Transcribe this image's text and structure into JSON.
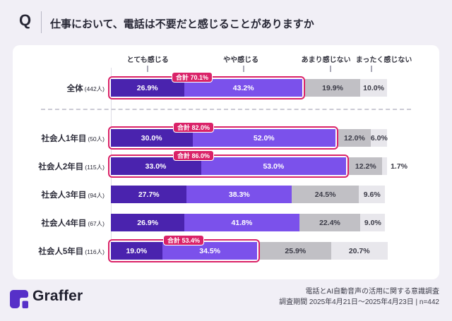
{
  "header": {
    "q_mark": "Q",
    "title": "仕事において、電話は不要だと感じることがありますか"
  },
  "chart_data": {
    "type": "bar",
    "orientation": "horizontal-stacked",
    "unit": "%",
    "title": "仕事において、電話は不要だと感じることがありますか",
    "xlim": [
      0,
      100
    ],
    "grid": false,
    "legend_position": "top",
    "legend": [
      "とても感じる",
      "やや感じる",
      "あまり感じない",
      "まったく感じない"
    ],
    "colors": {
      "segments": [
        "#4A23AE",
        "#7B51EB",
        "#C1C0C5",
        "#E8E7EC"
      ],
      "segment_text": [
        "#FFFFFF",
        "#FFFFFF",
        "#3B3B47",
        "#3B3B47"
      ],
      "highlight_pink": "#DA2268",
      "background": "#F1EFF6",
      "card": "#FFFFFF"
    },
    "rows": [
      {
        "label": "全体",
        "count": "(442人)",
        "values": [
          26.9,
          43.2,
          19.9,
          10.0
        ],
        "total_label": "合計 70.1%",
        "separator_after": true
      },
      {
        "label": "社会人1年目",
        "count": "(50人)",
        "values": [
          30.0,
          52.0,
          12.0,
          6.0
        ],
        "total_label": "合計 82.0%"
      },
      {
        "label": "社会人2年目",
        "count": "(115人)",
        "values": [
          33.0,
          53.0,
          12.2,
          1.7
        ],
        "total_label": "合計 86.0%"
      },
      {
        "label": "社会人3年目",
        "count": "(94人)",
        "values": [
          27.7,
          38.3,
          24.5,
          9.6
        ]
      },
      {
        "label": "社会人4年目",
        "count": "(67人)",
        "values": [
          26.9,
          41.8,
          22.4,
          9.0
        ]
      },
      {
        "label": "社会人5年目",
        "count": "(116人)",
        "values": [
          19.0,
          34.5,
          25.9,
          20.7
        ],
        "total_label": "合計 53.4%"
      }
    ]
  },
  "footer": {
    "brand": "Graffer",
    "source_line1": "電話とAI自動音声の活用に関する意識調査",
    "source_line2": "調査期間 2025年4月21日〜2025年4月23日 | n=442"
  }
}
